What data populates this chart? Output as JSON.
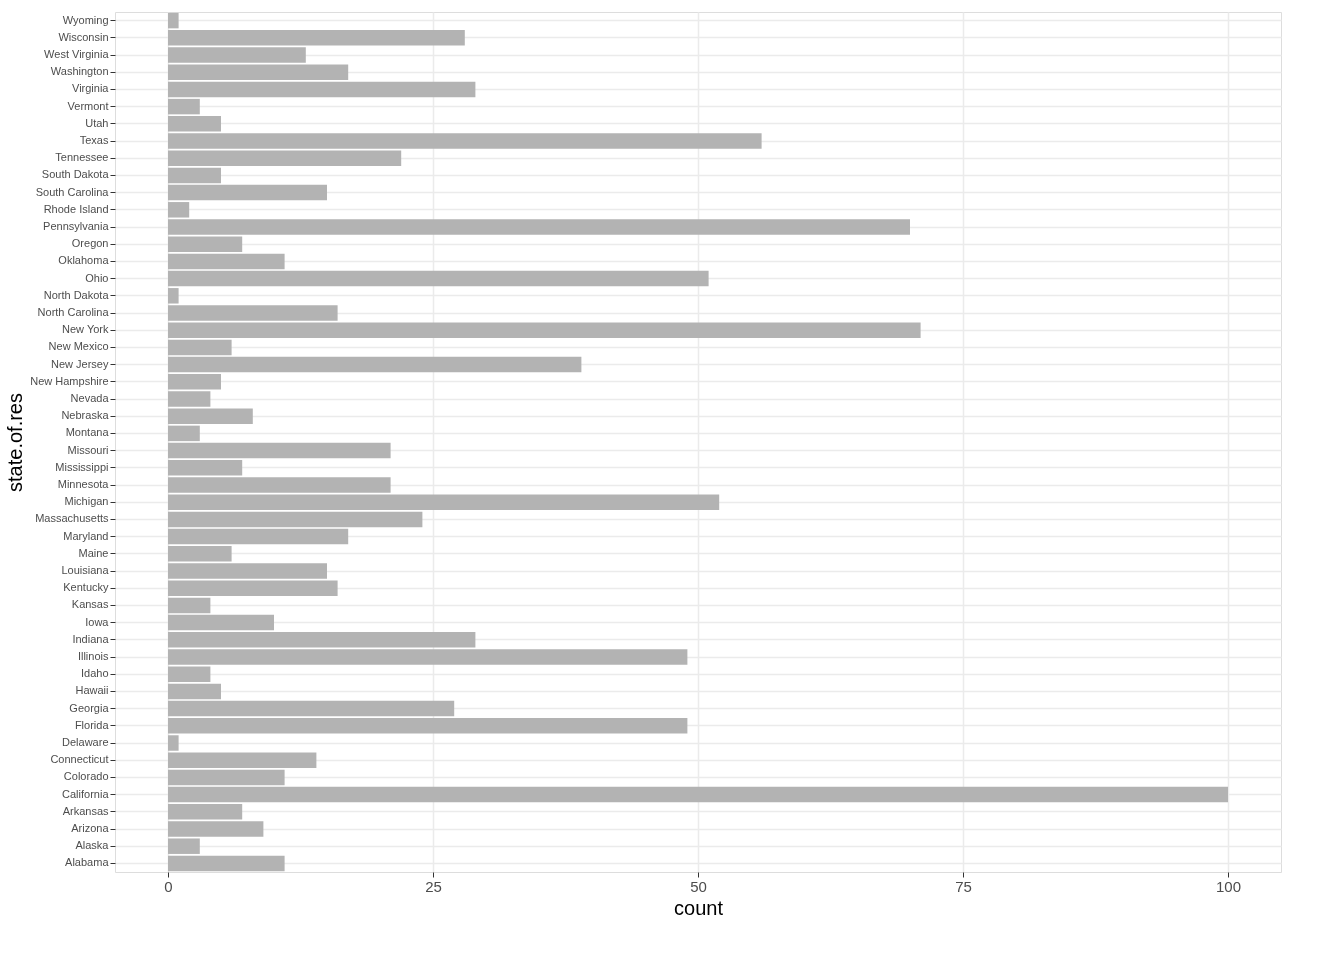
{
  "chart_data": {
    "type": "bar",
    "orientation": "horizontal",
    "xlabel": "count",
    "ylabel": "state.of.res",
    "categories": [
      "Wyoming",
      "Wisconsin",
      "West Virginia",
      "Washington",
      "Virginia",
      "Vermont",
      "Utah",
      "Texas",
      "Tennessee",
      "South Dakota",
      "South Carolina",
      "Rhode Island",
      "Pennsylvania",
      "Oregon",
      "Oklahoma",
      "Ohio",
      "North Dakota",
      "North Carolina",
      "New York",
      "New Mexico",
      "New Jersey",
      "New Hampshire",
      "Nevada",
      "Nebraska",
      "Montana",
      "Missouri",
      "Mississippi",
      "Minnesota",
      "Michigan",
      "Massachusetts",
      "Maryland",
      "Maine",
      "Louisiana",
      "Kentucky",
      "Kansas",
      "Iowa",
      "Indiana",
      "Illinois",
      "Idaho",
      "Hawaii",
      "Georgia",
      "Florida",
      "Delaware",
      "Connecticut",
      "Colorado",
      "California",
      "Arkansas",
      "Arizona",
      "Alaska",
      "Alabama"
    ],
    "values": [
      1,
      28,
      13,
      17,
      29,
      3,
      5,
      56,
      22,
      5,
      15,
      2,
      70,
      7,
      11,
      51,
      1,
      16,
      71,
      6,
      39,
      5,
      4,
      8,
      3,
      21,
      7,
      21,
      52,
      24,
      17,
      6,
      15,
      16,
      4,
      10,
      29,
      49,
      4,
      5,
      27,
      49,
      1,
      14,
      11,
      100,
      7,
      9,
      3,
      11
    ],
    "color": "#b3b3b3",
    "xlim": [
      -5,
      105
    ],
    "xticks": [
      0,
      25,
      50,
      75,
      100
    ],
    "grid": true
  }
}
